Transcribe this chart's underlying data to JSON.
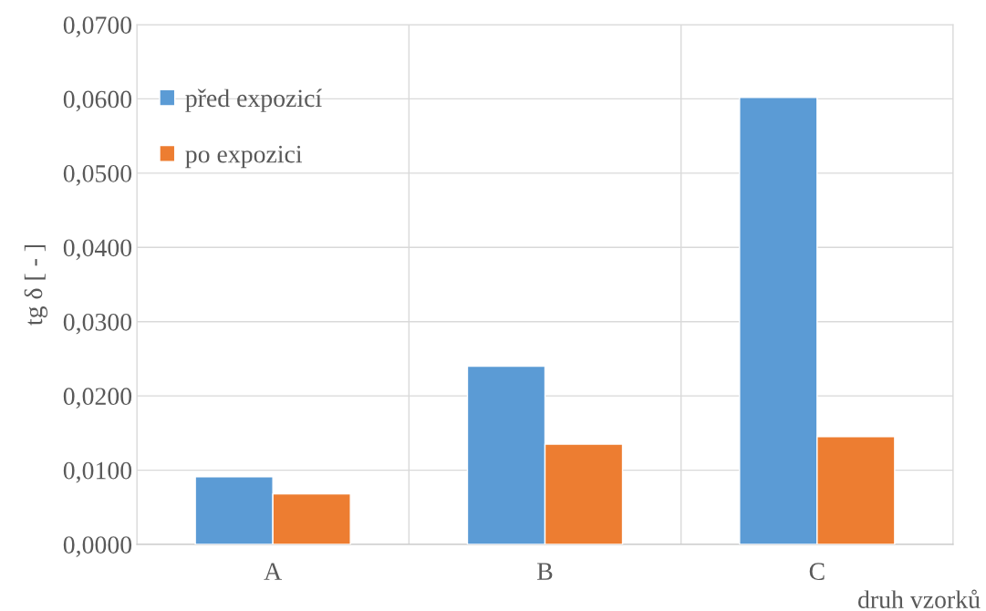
{
  "chart_data": {
    "type": "bar",
    "ylabel": "tg δ [ - ]",
    "xlabel": "druh vzorků",
    "categories": [
      "A",
      "B",
      "C"
    ],
    "series": [
      {
        "name": "před expozicí",
        "color": "#5b9bd5",
        "values": [
          0.0091,
          0.024,
          0.0602
        ]
      },
      {
        "name": "po expozici",
        "color": "#ed7d31",
        "values": [
          0.0068,
          0.0135,
          0.0145
        ]
      }
    ],
    "ylim": [
      0,
      0.07
    ],
    "yticks": [
      {
        "value": 0,
        "label": "0,0000"
      },
      {
        "value": 0.01,
        "label": "0,0100"
      },
      {
        "value": 0.02,
        "label": "0,0200"
      },
      {
        "value": 0.03,
        "label": "0,0300"
      },
      {
        "value": 0.04,
        "label": "0,0400"
      },
      {
        "value": 0.05,
        "label": "0,0500"
      },
      {
        "value": 0.06,
        "label": "0,0600"
      },
      {
        "value": 0.07,
        "label": "0,0700"
      }
    ],
    "grid": true,
    "legend": "top left"
  }
}
